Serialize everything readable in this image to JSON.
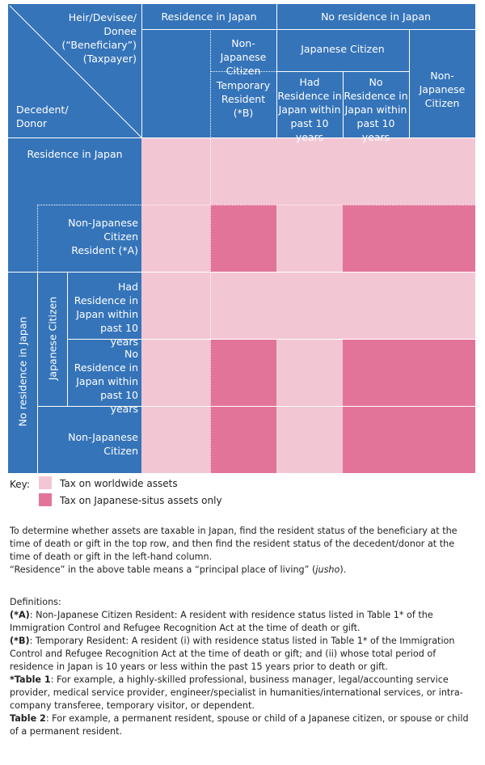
{
  "header": {
    "taxpayer": [
      "Heir/Devisee/",
      "Donee",
      "(“Beneficiary”)",
      "(Taxpayer)"
    ],
    "decedent": [
      "Decedent/",
      "Donor"
    ],
    "residence_in_japan": "Residence in Japan",
    "no_residence_in_japan": "No residence in Japan",
    "non_japanese_citizen_2": [
      "Non-Japanese",
      "Citizen"
    ],
    "temporary_resident": [
      "Temporary",
      "Resident (*B)"
    ],
    "japanese_citizen": "Japanese Citizen",
    "had_residence": [
      "Had",
      "Residence in",
      "Japan within",
      "past 10 years"
    ],
    "no_residence": [
      "No",
      "Residence in",
      "Japan within",
      "past 10 years"
    ],
    "non_japanese_citizen_top": [
      "Non-Japanese",
      "Citizen"
    ]
  },
  "rows": {
    "residence_in_japan": "Residence in Japan",
    "non_japanese_resident": [
      "Non-Japanese",
      "Citizen",
      "Resident (*A)"
    ],
    "no_residence_in_japan": "No residence in Japan",
    "japanese_citizen": "Japanese Citizen",
    "had_residence": [
      "Had",
      "Residence in",
      "Japan within",
      "past 10 years"
    ],
    "no_residence": [
      "No",
      "Residence in",
      "Japan within",
      "past 10 years"
    ],
    "non_japanese_citizen": [
      "Non-Japanese",
      "Citizen"
    ]
  },
  "grid": [
    [
      "worldwide",
      "worldwide",
      "worldwide",
      "worldwide",
      "worldwide"
    ],
    [
      "worldwide",
      "japanese_situs",
      "worldwide",
      "japanese_situs",
      "japanese_situs"
    ],
    [
      "worldwide",
      "worldwide",
      "worldwide",
      "worldwide",
      "worldwide"
    ],
    [
      "worldwide",
      "japanese_situs",
      "worldwide",
      "japanese_situs",
      "japanese_situs"
    ],
    [
      "worldwide",
      "japanese_situs",
      "worldwide",
      "japanese_situs",
      "japanese_situs"
    ]
  ],
  "colors": {
    "header_blue": "#3574b9",
    "worldwide": "#f3c6d4",
    "japanese_situs": "#e37499"
  },
  "key": {
    "title": "Key:",
    "worldwide": "Tax on worldwide assets",
    "japanese_situs": "Tax on Japanese-situs assets only"
  },
  "intro": {
    "p1": "To determine whether assets are taxable in Japan, find the resident status of the beneficiary at the time of death or gift in the top row, and then find the resident status of the decedent/donor at the time of death or gift in the left-hand column.",
    "p2_before": "“Residence” in the above table means a “principal place of living” (",
    "p2_italic": "jusho",
    "p2_after": ")."
  },
  "definitions": {
    "title": "Definitions:",
    "a_label": "(*A)",
    "a_text": ": Non-Japanese Citizen Resident: A resident with residence status listed in Table 1* of the Immigration Control and Refugee Recognition Act at the time of death or gift.",
    "b_label": "(*B)",
    "b_text": ": Temporary Resident: A resident (i) with residence status listed in Table 1* of the Immigration Control and Refugee Recognition Act at the time of death or gift; and (ii) whose total period of residence in Japan is 10 years or less within the past 15 years prior to death or gift.",
    "t1_label": "*Table 1",
    "t1_text": ": For example, a highly-skilled professional, business manager, legal/accounting service provider, medical service provider, engineer/specialist in humanities/international services, or intra-company transferee, temporary visitor, or dependent.",
    "t2_label": "Table 2",
    "t2_text": ": For example, a permanent resident, spouse or child of a Japanese citizen, or spouse or child of a permanent resident."
  }
}
